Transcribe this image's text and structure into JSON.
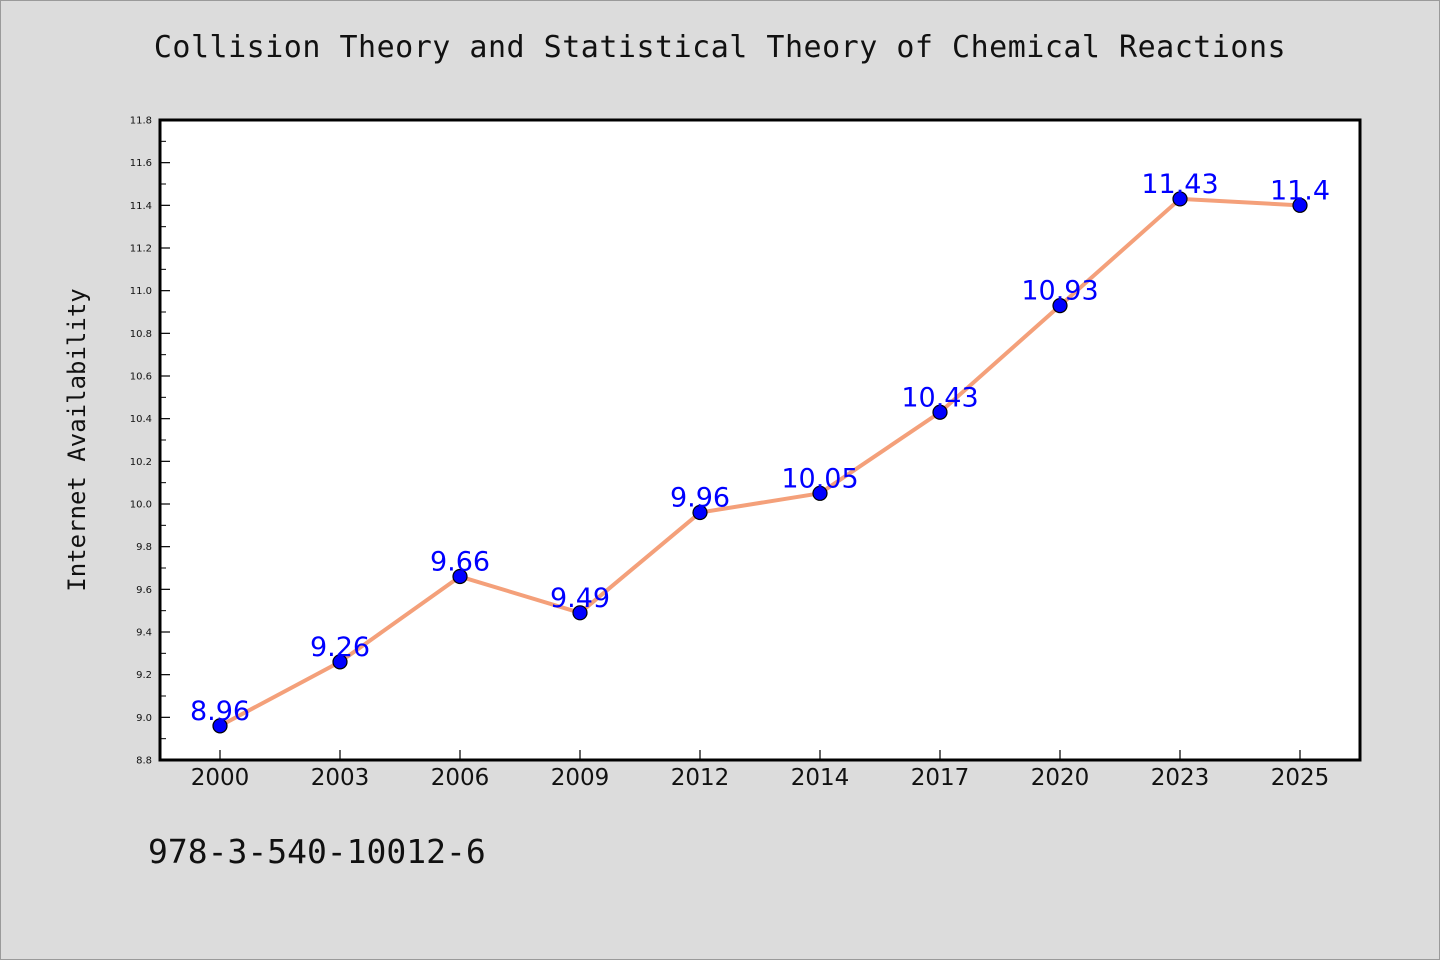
{
  "chart_data": {
    "type": "line",
    "title": "Collision Theory and Statistical Theory of Chemical Reactions",
    "xlabel": "",
    "ylabel": "Internet Availability",
    "categories": [
      "2000",
      "2003",
      "2006",
      "2009",
      "2012",
      "2014",
      "2017",
      "2020",
      "2023",
      "2025"
    ],
    "series": [
      {
        "values": [
          8.96,
          9.26,
          9.66,
          9.49,
          9.96,
          10.05,
          10.43,
          10.93,
          11.43,
          11.4
        ],
        "data_labels": [
          "8.96",
          "9.26",
          "9.66",
          "9.49",
          "9.96",
          "10.05",
          "10.43",
          "10.93",
          "11.43",
          "11.4"
        ]
      }
    ],
    "ylim": [
      8.8,
      11.8
    ],
    "yticks": [
      "8.8",
      "9.0",
      "9.2",
      "9.4",
      "9.6",
      "9.8",
      "10.0",
      "10.2",
      "10.4",
      "10.6",
      "10.8",
      "11.0",
      "11.2",
      "11.4",
      "11.6",
      "11.8"
    ],
    "grid": false,
    "colors": {
      "line": "#f4a07a",
      "marker": "#0000ff",
      "marker_edge": "#000000",
      "data_label": "#0000ff",
      "plot_bg": "#ffffff",
      "figure_bg": "#dcdcdc"
    }
  },
  "footer": {
    "isbn": "978-3-540-10012-6"
  }
}
